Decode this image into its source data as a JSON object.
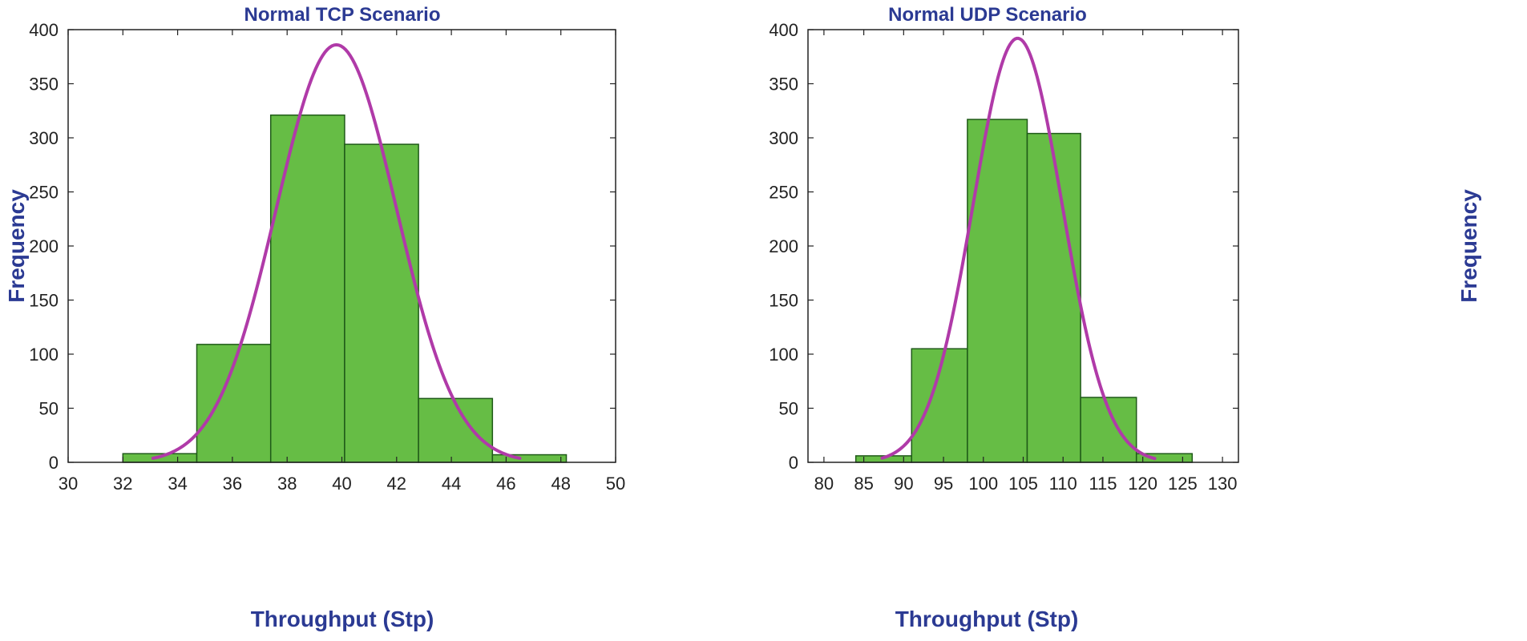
{
  "colors": {
    "bar_fill": "#66bd45",
    "bar_stroke": "#1f5a18",
    "curve": "#b03aa8",
    "title": "#2b3a93",
    "axis": "#222222"
  },
  "chart_data": [
    {
      "type": "bar",
      "title": "Normal TCP Scenario",
      "xlabel": "Throughput (Stp)",
      "ylabel": "Frequency",
      "xlim": [
        30,
        50
      ],
      "ylim": [
        0,
        400
      ],
      "xticks": [
        30,
        32,
        34,
        36,
        38,
        40,
        42,
        44,
        46,
        48,
        50
      ],
      "yticks": [
        0,
        50,
        100,
        150,
        200,
        250,
        300,
        350,
        400
      ],
      "bins": [
        {
          "start": 32.0,
          "end": 34.7,
          "value": 8
        },
        {
          "start": 34.7,
          "end": 37.4,
          "value": 109
        },
        {
          "start": 37.4,
          "end": 40.1,
          "value": 321
        },
        {
          "start": 40.1,
          "end": 42.8,
          "value": 294
        },
        {
          "start": 42.8,
          "end": 45.5,
          "value": 59
        },
        {
          "start": 45.5,
          "end": 48.2,
          "value": 7
        }
      ],
      "fit": {
        "type": "normal",
        "mean": 39.8,
        "sigma": 2.2,
        "peak": 386,
        "x_range": [
          33.1,
          46.5
        ]
      }
    },
    {
      "type": "bar",
      "title": "Normal UDP Scenario",
      "xlabel": "Throughput (Stp)",
      "ylabel": "Frequency",
      "xlim": [
        78,
        132
      ],
      "ylim": [
        0,
        400
      ],
      "xticks": [
        80,
        85,
        90,
        95,
        100,
        105,
        110,
        115,
        120,
        125,
        130
      ],
      "yticks": [
        0,
        50,
        100,
        150,
        200,
        250,
        300,
        350,
        400
      ],
      "bins": [
        {
          "start": 84.0,
          "end": 91.0,
          "value": 6
        },
        {
          "start": 91.0,
          "end": 98.0,
          "value": 105
        },
        {
          "start": 98.0,
          "end": 105.5,
          "value": 317
        },
        {
          "start": 105.5,
          "end": 112.2,
          "value": 304
        },
        {
          "start": 112.2,
          "end": 119.2,
          "value": 60
        },
        {
          "start": 119.2,
          "end": 126.2,
          "value": 8
        }
      ],
      "fit": {
        "type": "normal",
        "mean": 104.3,
        "sigma": 5.6,
        "peak": 392,
        "x_range": [
          87.3,
          121.5
        ]
      }
    }
  ]
}
